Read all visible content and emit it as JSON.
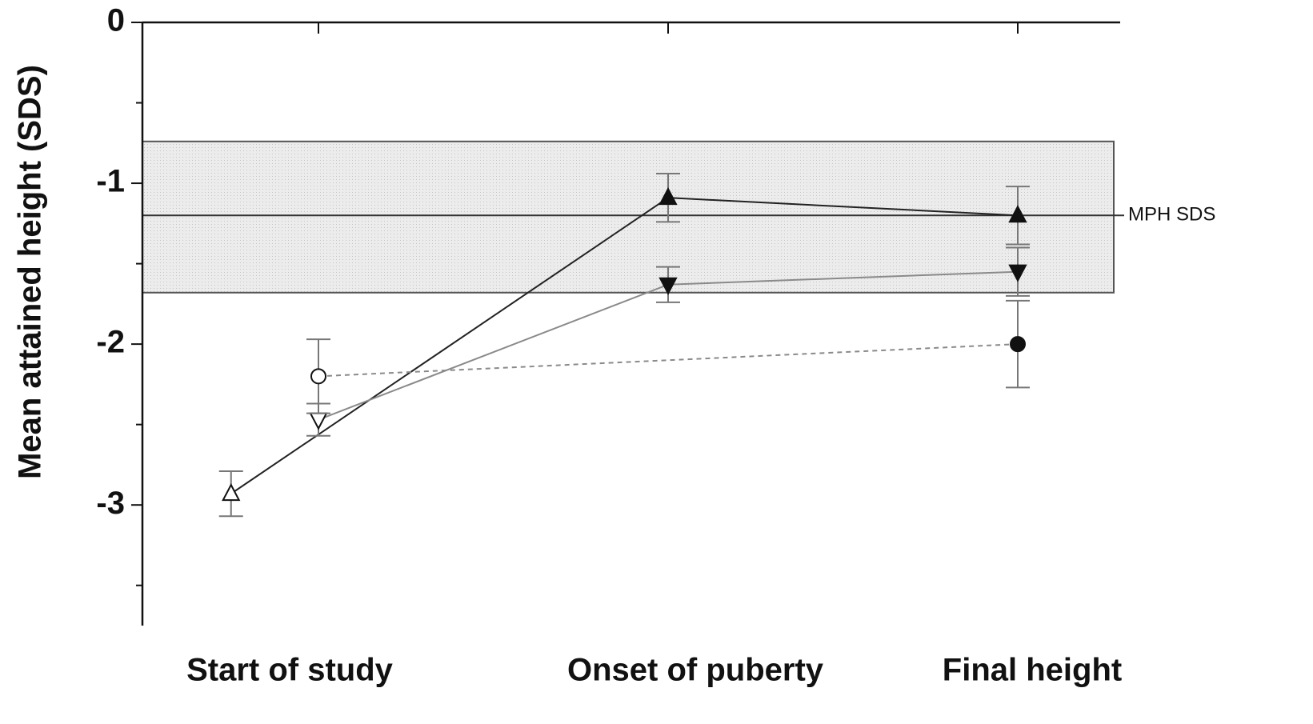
{
  "chart_data": {
    "type": "line",
    "y_label": "Mean attained height (SDS)",
    "categories": [
      "Start of study",
      "Onset of puberty",
      "Final height"
    ],
    "ylim": [
      -3.75,
      0
    ],
    "yticks": [
      0,
      -1,
      -2,
      -3
    ],
    "yminorticks": [
      -0.5,
      -1.5,
      -2.5,
      -3.5
    ],
    "band": [
      -1.68,
      -0.74
    ],
    "reference": {
      "label": "MPH SDS",
      "value": -1.2
    },
    "series": [
      {
        "x": [
          -0.25,
          1,
          2
        ],
        "values": [
          -2.93,
          -1.09,
          -1.2
        ],
        "errors": [
          0.14,
          0.15,
          0.18
        ],
        "marker": "triangle-up",
        "filled": [
          false,
          true,
          true
        ],
        "color": "#222222",
        "dash": false
      },
      {
        "x": [
          0,
          1,
          2
        ],
        "values": [
          -2.47,
          -1.63,
          -1.55
        ],
        "errors": [
          0.1,
          0.11,
          0.15
        ],
        "marker": "triangle-down",
        "filled": [
          false,
          true,
          true
        ],
        "color": "#8a8a8a",
        "dash": false
      },
      {
        "x": [
          0,
          2
        ],
        "values": [
          -2.2,
          -2.0
        ],
        "errors": [
          0.23,
          0.27
        ],
        "marker": "circle",
        "filled": [
          false,
          true
        ],
        "color": "#8a8a8a",
        "dash": true
      }
    ]
  }
}
